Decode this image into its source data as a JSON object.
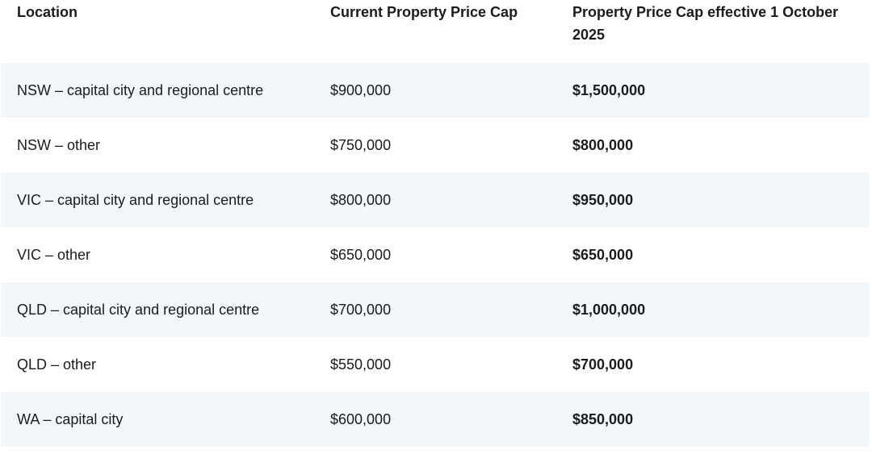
{
  "table": {
    "headers": [
      "Location",
      "Current Property Price Cap",
      "Property Price Cap effective 1 October 2025"
    ],
    "rows": [
      [
        "NSW – capital city and regional centre",
        "$900,000",
        "$1,500,000"
      ],
      [
        "NSW – other",
        "$750,000",
        "$800,000"
      ],
      [
        "VIC – capital city and regional centre",
        "$800,000",
        "$950,000"
      ],
      [
        "VIC – other",
        "$650,000",
        "$650,000"
      ],
      [
        "QLD – capital city and regional centre",
        "$700,000",
        "$1,000,000"
      ],
      [
        "QLD – other",
        "$550,000",
        "$700,000"
      ],
      [
        "WA – capital city",
        "$600,000",
        "$850,000"
      ]
    ]
  },
  "colors": {
    "text": "#1c1c1c",
    "row_shade": "#f2f7fc",
    "background": "#ffffff"
  }
}
